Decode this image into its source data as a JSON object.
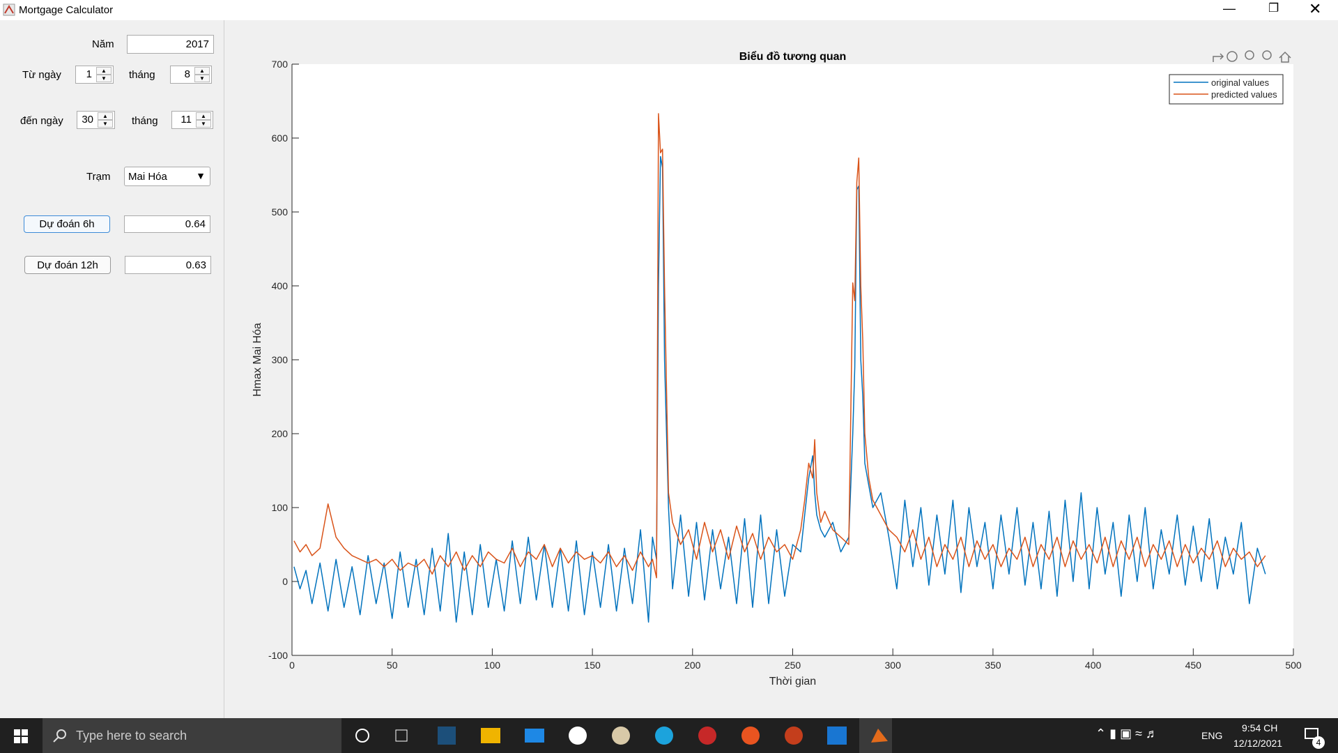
{
  "window": {
    "title": "Mortgage Calculator"
  },
  "controls": {
    "year_label": "Năm",
    "year": "2017",
    "from_day_label": "Từ ngày",
    "from_day": "1",
    "from_month_label": "tháng",
    "from_month": "8",
    "to_day_label": "đến ngày",
    "to_day": "30",
    "to_month_label": "tháng",
    "to_month": "11",
    "station_label": "Trạm",
    "station": "Mai Hóa",
    "predict_6h_button": "Dự đoán 6h",
    "predict_6h_value": "0.64",
    "predict_12h_button": "Dự đoán 12h",
    "predict_12h_value": "0.63"
  },
  "chart_data": {
    "type": "line",
    "title": "Biểu đồ tương quan",
    "xlabel": "Thời gian",
    "ylabel": "Hmax Mai Hóa",
    "xlim": [
      0,
      500
    ],
    "ylim": [
      -100,
      700
    ],
    "xticks": [
      0,
      50,
      100,
      150,
      200,
      250,
      300,
      350,
      400,
      450,
      500
    ],
    "yticks": [
      -100,
      0,
      100,
      200,
      300,
      400,
      500,
      600,
      700
    ],
    "grid": false,
    "legend": "upper right",
    "x": [
      1,
      4,
      7,
      10,
      14,
      18,
      22,
      26,
      30,
      34,
      38,
      42,
      46,
      50,
      54,
      58,
      62,
      66,
      70,
      74,
      78,
      82,
      86,
      90,
      94,
      98,
      102,
      106,
      110,
      114,
      118,
      122,
      126,
      130,
      134,
      138,
      142,
      146,
      150,
      154,
      158,
      162,
      166,
      170,
      174,
      178,
      180,
      182,
      183,
      184,
      185,
      186,
      188,
      190,
      194,
      198,
      202,
      206,
      210,
      214,
      218,
      222,
      226,
      230,
      234,
      238,
      242,
      246,
      250,
      254,
      256,
      258,
      260,
      261,
      262,
      264,
      266,
      270,
      274,
      278,
      280,
      281,
      282,
      283,
      284,
      285,
      286,
      288,
      290,
      294,
      298,
      302,
      306,
      310,
      314,
      318,
      322,
      326,
      330,
      334,
      338,
      342,
      346,
      350,
      354,
      358,
      362,
      366,
      370,
      374,
      378,
      382,
      386,
      390,
      394,
      398,
      402,
      406,
      410,
      414,
      418,
      422,
      426,
      430,
      434,
      438,
      442,
      446,
      450,
      454,
      458,
      462,
      466,
      470,
      474,
      478,
      482,
      486
    ],
    "series": [
      {
        "name": "original values",
        "color": "#0072bd",
        "values": [
          20,
          -10,
          15,
          -30,
          25,
          -40,
          30,
          -35,
          20,
          -45,
          35,
          -30,
          25,
          -50,
          40,
          -35,
          30,
          -45,
          45,
          -40,
          65,
          -55,
          40,
          -45,
          50,
          -35,
          30,
          -40,
          55,
          -30,
          60,
          -25,
          50,
          -35,
          45,
          -40,
          55,
          -45,
          40,
          -35,
          50,
          -40,
          45,
          -30,
          70,
          -55,
          60,
          30,
          400,
          575,
          560,
          300,
          100,
          -10,
          90,
          -20,
          80,
          -25,
          70,
          -10,
          60,
          -30,
          85,
          -35,
          90,
          -30,
          70,
          -20,
          50,
          40,
          90,
          140,
          170,
          120,
          90,
          70,
          60,
          80,
          40,
          60,
          200,
          290,
          530,
          535,
          300,
          250,
          160,
          130,
          100,
          120,
          60,
          -10,
          110,
          20,
          100,
          -5,
          90,
          10,
          110,
          -15,
          100,
          20,
          80,
          -10,
          90,
          10,
          100,
          -5,
          80,
          -10,
          95,
          -20,
          110,
          0,
          120,
          -10,
          100,
          10,
          80,
          -20,
          90,
          0,
          100,
          -10,
          70,
          10,
          90,
          -5,
          75,
          0,
          85,
          -10,
          60,
          10,
          80,
          -30,
          45,
          10
        ]
      },
      {
        "name": "predicted values",
        "color": "#d95319",
        "values": [
          55,
          40,
          50,
          35,
          45,
          105,
          60,
          45,
          35,
          30,
          25,
          30,
          20,
          30,
          15,
          25,
          20,
          30,
          10,
          35,
          20,
          40,
          15,
          35,
          20,
          40,
          30,
          25,
          45,
          20,
          40,
          30,
          50,
          20,
          45,
          25,
          40,
          30,
          35,
          25,
          40,
          20,
          35,
          15,
          40,
          20,
          30,
          5,
          633,
          580,
          585,
          400,
          120,
          80,
          50,
          70,
          30,
          80,
          40,
          70,
          30,
          75,
          40,
          65,
          30,
          60,
          40,
          50,
          30,
          70,
          110,
          160,
          140,
          192,
          120,
          80,
          95,
          70,
          60,
          50,
          404,
          380,
          540,
          573,
          400,
          325,
          200,
          140,
          110,
          90,
          70,
          60,
          40,
          70,
          30,
          60,
          20,
          50,
          30,
          60,
          20,
          55,
          30,
          50,
          20,
          45,
          30,
          60,
          20,
          50,
          30,
          60,
          20,
          55,
          30,
          50,
          25,
          60,
          20,
          55,
          30,
          60,
          20,
          50,
          30,
          55,
          20,
          50,
          25,
          45,
          30,
          55,
          20,
          45,
          30,
          40,
          20,
          35
        ]
      }
    ]
  },
  "taskbar": {
    "search": "Type here to search",
    "language": "ENG",
    "time": "9:54 CH",
    "date": "12/12/2021",
    "notifications": "4"
  }
}
